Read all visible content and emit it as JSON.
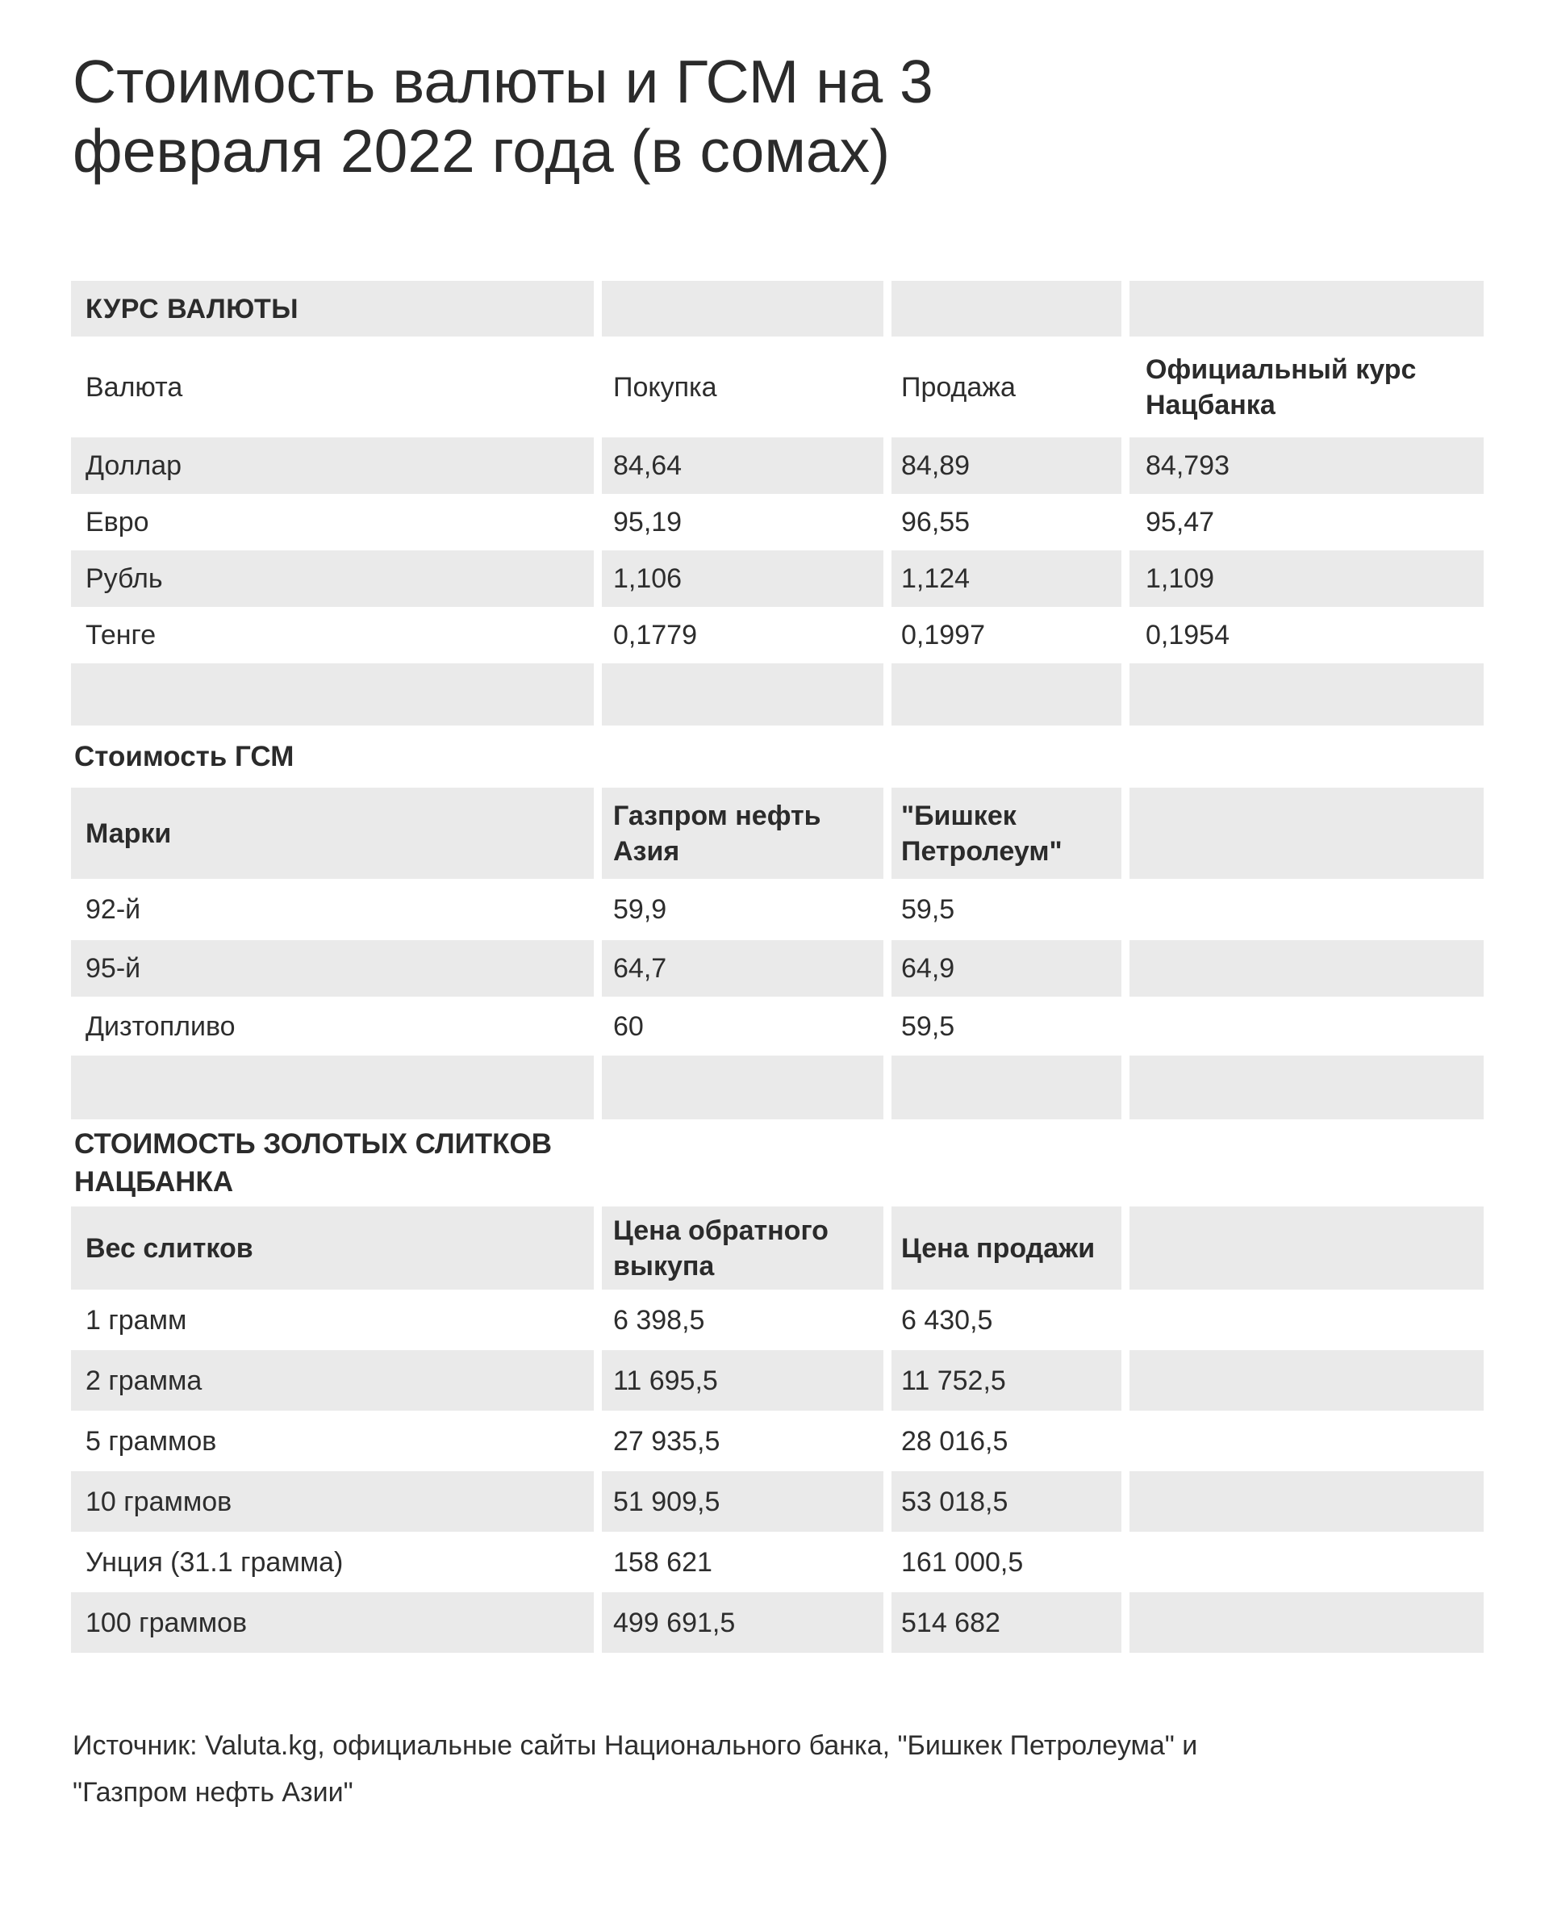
{
  "page": {
    "title_lines": [
      "Стоимость валюты и ГСМ на 3",
      "февраля 2022 года (в сомах)"
    ],
    "footer_lines": [
      "Источник: Valuta.kg, официальные сайты Национального банка, \"Бишкек Петролеума\" и",
      "\"Газпром нефть Азии\""
    ]
  },
  "colors": {
    "row_gray": "#eaeaea",
    "text": "#2d2d2d",
    "background": "#ffffff"
  },
  "t1": {
    "section": "КУРС ВАЛЮТЫ",
    "h": [
      "Валюта",
      "Покупка",
      "Продажа",
      "Официальный курс Нацбанка"
    ],
    "r0": [
      "Доллар",
      "84,64",
      "84,89",
      "84,793"
    ],
    "r1": [
      "Евро",
      "95,19",
      "96,55",
      "95,47"
    ],
    "r2": [
      "Рубль",
      "1,106",
      "1,124",
      "1,109"
    ],
    "r3": [
      "Тенге",
      "0,1779",
      "0,1997",
      "0,1954"
    ]
  },
  "t2": {
    "section": "Стоимость ГСМ",
    "h": [
      "Марки",
      "Газпром нефть Азия",
      "\"Бишкек Петролеум\""
    ],
    "r0": [
      "92-й",
      "59,9",
      "59,5"
    ],
    "r1": [
      "95-й",
      "64,7",
      "64,9"
    ],
    "r2": [
      "Дизтопливо",
      "60",
      "59,5"
    ]
  },
  "t3": {
    "section": "СТОИМОСТЬ ЗОЛОТЫХ СЛИТКОВ НАЦБАНКА",
    "h": [
      "Вес слитков",
      "Цена обратного выкупа",
      "Цена продажи"
    ],
    "r0": [
      "1 грамм",
      "6 398,5",
      "6 430,5"
    ],
    "r1": [
      "2 грамма",
      "11 695,5",
      "11 752,5"
    ],
    "r2": [
      "5 граммов",
      "27 935,5",
      "28 016,5"
    ],
    "r3": [
      "10 граммов",
      "51 909,5",
      "53 018,5"
    ],
    "r4": [
      "Унция (31.1 грамма)",
      "158 621",
      "161 000,5"
    ],
    "r5": [
      "100 граммов",
      "499 691,5",
      "514 682"
    ]
  },
  "chart_data": [
    {
      "type": "table",
      "title": "КУРС ВАЛЮТЫ",
      "columns": [
        "Валюта",
        "Покупка",
        "Продажа",
        "Официальный курс Нацбанка"
      ],
      "rows": [
        [
          "Доллар",
          84.64,
          84.89,
          84.793
        ],
        [
          "Евро",
          95.19,
          96.55,
          95.47
        ],
        [
          "Рубль",
          1.106,
          1.124,
          1.109
        ],
        [
          "Тенге",
          0.1779,
          0.1997,
          0.1954
        ]
      ]
    },
    {
      "type": "table",
      "title": "Стоимость ГСМ",
      "columns": [
        "Марки",
        "Газпром нефть Азия",
        "\"Бишкек Петролеум\""
      ],
      "rows": [
        [
          "92-й",
          59.9,
          59.5
        ],
        [
          "95-й",
          64.7,
          64.9
        ],
        [
          "Дизтопливо",
          60,
          59.5
        ]
      ]
    },
    {
      "type": "table",
      "title": "СТОИМОСТЬ ЗОЛОТЫХ СЛИТКОВ НАЦБАНКА",
      "columns": [
        "Вес слитков",
        "Цена обратного выкупа",
        "Цена продажи"
      ],
      "rows": [
        [
          "1 грамм",
          6398.5,
          6430.5
        ],
        [
          "2 грамма",
          11695.5,
          11752.5
        ],
        [
          "5 граммов",
          27935.5,
          28016.5
        ],
        [
          "10 граммов",
          51909.5,
          53018.5
        ],
        [
          "Унция (31.1 грамма)",
          158621,
          161000.5
        ],
        [
          "100 граммов",
          499691.5,
          514682
        ]
      ]
    }
  ]
}
